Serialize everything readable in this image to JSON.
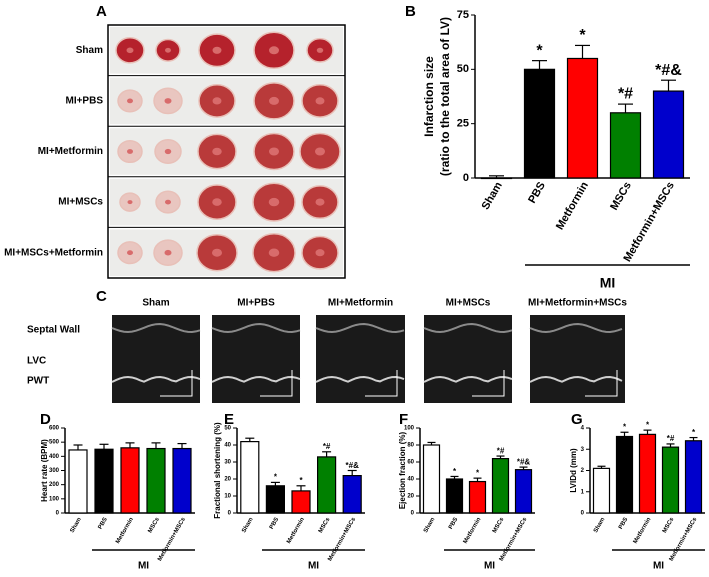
{
  "panels": {
    "A": {
      "letter": "A",
      "row_labels": [
        "Sham",
        "MI+PBS",
        "MI+Metformin",
        "MI+MSCs",
        "MI+MSCs+Metformin"
      ]
    },
    "C": {
      "letter": "C",
      "column_labels": [
        "Sham",
        "MI+PBS",
        "MI+Metformin",
        "MI+MSCs",
        "MI+Metformin+MSCs"
      ],
      "row_labels": [
        "Septal Wall",
        "LVC",
        "PWT"
      ]
    }
  },
  "chart_data": [
    {
      "type": "bar",
      "panel": "B",
      "y_label": [
        "Infarction size",
        "(ratio to the total area of LV)"
      ],
      "categories": [
        "Sham",
        "PBS",
        "Metformin",
        "MSCs",
        "Metformin+MSCs"
      ],
      "values": [
        0,
        50,
        55,
        30,
        40
      ],
      "errors": [
        1,
        4,
        6,
        4,
        5
      ],
      "annotations": [
        null,
        "*",
        "*",
        "*#",
        "*#&"
      ],
      "colors": [
        "#ffffff",
        "#000000",
        "#ff0000",
        "#008000",
        "#0000cc"
      ],
      "ylim": [
        0,
        75
      ],
      "yticks": [
        0,
        25,
        50,
        75
      ],
      "group_label": "MI"
    },
    {
      "type": "bar",
      "panel": "D",
      "y_label": [
        "Heart rate (BPM)"
      ],
      "categories": [
        "Sham",
        "PBS",
        "Metformin",
        "MSCs",
        "Metformin+MSCs"
      ],
      "values": [
        445,
        450,
        460,
        455,
        455
      ],
      "errors": [
        35,
        35,
        35,
        40,
        35
      ],
      "annotations": [
        null,
        null,
        null,
        null,
        null
      ],
      "colors": [
        "#ffffff",
        "#000000",
        "#ff0000",
        "#008000",
        "#0000cc"
      ],
      "ylim": [
        0,
        600
      ],
      "yticks": [
        0,
        100,
        200,
        300,
        400,
        500,
        600
      ],
      "group_label": "MI"
    },
    {
      "type": "bar",
      "panel": "E",
      "y_label": [
        "Fractional shortening (%)"
      ],
      "categories": [
        "Sham",
        "PBS",
        "Metformin",
        "MSCs",
        "Metformin+MSCs"
      ],
      "values": [
        42,
        16,
        13,
        33,
        22
      ],
      "errors": [
        2,
        2,
        3,
        3,
        3
      ],
      "annotations": [
        null,
        "*",
        "*",
        "*#",
        "*#&"
      ],
      "colors": [
        "#ffffff",
        "#000000",
        "#ff0000",
        "#008000",
        "#0000cc"
      ],
      "ylim": [
        0,
        50
      ],
      "yticks": [
        0,
        10,
        20,
        30,
        40,
        50
      ],
      "group_label": "MI"
    },
    {
      "type": "bar",
      "panel": "F",
      "y_label": [
        "Ejection fraction (%)"
      ],
      "categories": [
        "Sham",
        "PBS",
        "Metformin",
        "MSCs",
        "Metformin+MSCs"
      ],
      "values": [
        80,
        40,
        37,
        64,
        51
      ],
      "errors": [
        3,
        3,
        4,
        3,
        3
      ],
      "annotations": [
        null,
        "*",
        "*",
        "*#",
        "*#&"
      ],
      "colors": [
        "#ffffff",
        "#000000",
        "#ff0000",
        "#008000",
        "#0000cc"
      ],
      "ylim": [
        0,
        100
      ],
      "yticks": [
        0,
        20,
        40,
        60,
        80,
        100
      ],
      "group_label": "MI"
    },
    {
      "type": "bar",
      "panel": "G",
      "y_label": [
        "LVIDd (mm)"
      ],
      "categories": [
        "Sham",
        "PBS",
        "Metformin",
        "MSCs",
        "Metformin+MSCs"
      ],
      "values": [
        2.1,
        3.6,
        3.7,
        3.1,
        3.4
      ],
      "errors": [
        0.1,
        0.2,
        0.2,
        0.15,
        0.15
      ],
      "annotations": [
        null,
        "*",
        "*",
        "*#",
        "*"
      ],
      "colors": [
        "#ffffff",
        "#000000",
        "#ff0000",
        "#008000",
        "#0000cc"
      ],
      "ylim": [
        0,
        4
      ],
      "yticks": [
        0,
        1,
        2,
        3,
        4
      ],
      "group_label": "MI"
    }
  ]
}
